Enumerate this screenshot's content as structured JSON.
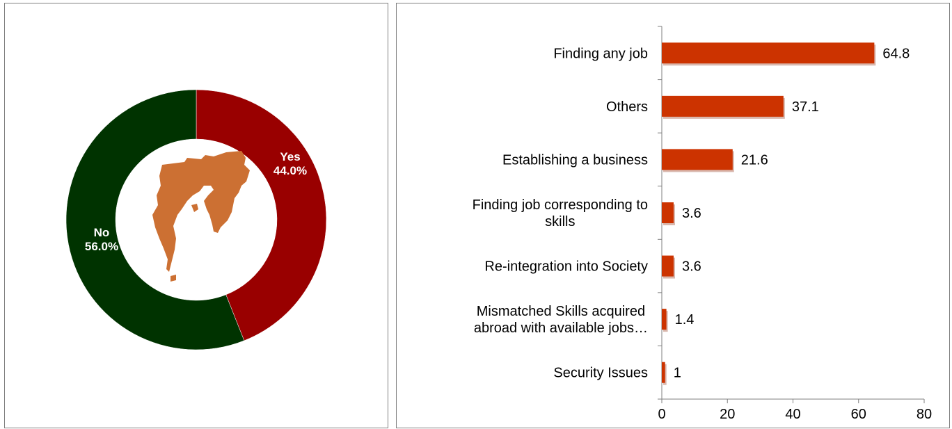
{
  "colors": {
    "yes": "#990000",
    "no": "#003300",
    "bar": "#cc3300",
    "map": "#cc7033",
    "axis": "#7f7f7f"
  },
  "icons": {
    "center_image": "map-icon"
  },
  "chart_data": [
    {
      "type": "pie",
      "subtype": "doughnut",
      "categories": [
        "Yes",
        "No"
      ],
      "values": [
        44.0,
        56.0
      ],
      "labels": [
        "44.0%",
        "56.0%"
      ],
      "colors": [
        "#990000",
        "#003300"
      ]
    },
    {
      "type": "bar",
      "orientation": "horizontal",
      "categories": [
        "Finding any job",
        "Others",
        "Establishing a business",
        "Finding job corresponding to skills",
        "Re-integration into Society",
        "Mismatched Skills acquired abroad with available jobs…",
        "Security Issues"
      ],
      "category_lines": [
        [
          "Finding any job"
        ],
        [
          "Others"
        ],
        [
          "Establishing a business"
        ],
        [
          "Finding job corresponding to",
          "skills"
        ],
        [
          "Re-integration into Society"
        ],
        [
          "Mismatched Skills acquired",
          "abroad with available jobs…"
        ],
        [
          "Security Issues"
        ]
      ],
      "values": [
        64.8,
        37.1,
        21.6,
        3.6,
        3.6,
        1.4,
        1
      ],
      "value_labels": [
        "64.8",
        "37.1",
        "21.6",
        "3.6",
        "3.6",
        "1.4",
        "1"
      ],
      "xlim": [
        0,
        80
      ],
      "xticks": [
        0,
        20,
        40,
        60,
        80
      ],
      "xtick_labels": [
        "0",
        "20",
        "40",
        "60",
        "80"
      ],
      "grid": false,
      "color": "#cc3300"
    }
  ]
}
